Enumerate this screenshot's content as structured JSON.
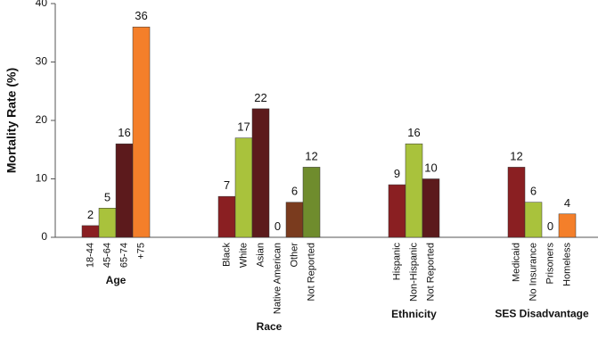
{
  "chart_data": {
    "type": "bar",
    "y_label": "Mortality Rate (%)",
    "ylim": [
      0,
      40
    ],
    "yticks": [
      0,
      10,
      20,
      30,
      40
    ],
    "groups": [
      {
        "name": "Age",
        "categories": [
          "18-44",
          "45-64",
          "65-74",
          "+75"
        ],
        "values": [
          2,
          5,
          16,
          36
        ],
        "colors": [
          "#8a1f22",
          "#a9c23c",
          "#5c1a1c",
          "#f47f2a"
        ]
      },
      {
        "name": "Race",
        "categories": [
          "Black",
          "White",
          "Asian",
          "Native American",
          "Other",
          "Not Reported"
        ],
        "values": [
          7,
          17,
          22,
          0,
          6,
          12
        ],
        "colors": [
          "#8a1f22",
          "#a9c23c",
          "#5c1a1c",
          "#f47f2a",
          "#7a3b1e",
          "#6f8c2d"
        ]
      },
      {
        "name": "Ethnicity",
        "categories": [
          "Hispanic",
          "Non-Hispanic",
          "Not Reported"
        ],
        "values": [
          9,
          16,
          10
        ],
        "colors": [
          "#8a1f22",
          "#a9c23c",
          "#5c1a1c"
        ]
      },
      {
        "name": "SES Disadvantage",
        "categories": [
          "Medicaid",
          "No Insurance",
          "Prisoners",
          "Homeless"
        ],
        "values": [
          12,
          6,
          0,
          4
        ],
        "colors": [
          "#8a1f22",
          "#a9c23c",
          "#5c1a1c",
          "#f47f2a"
        ]
      }
    ]
  }
}
